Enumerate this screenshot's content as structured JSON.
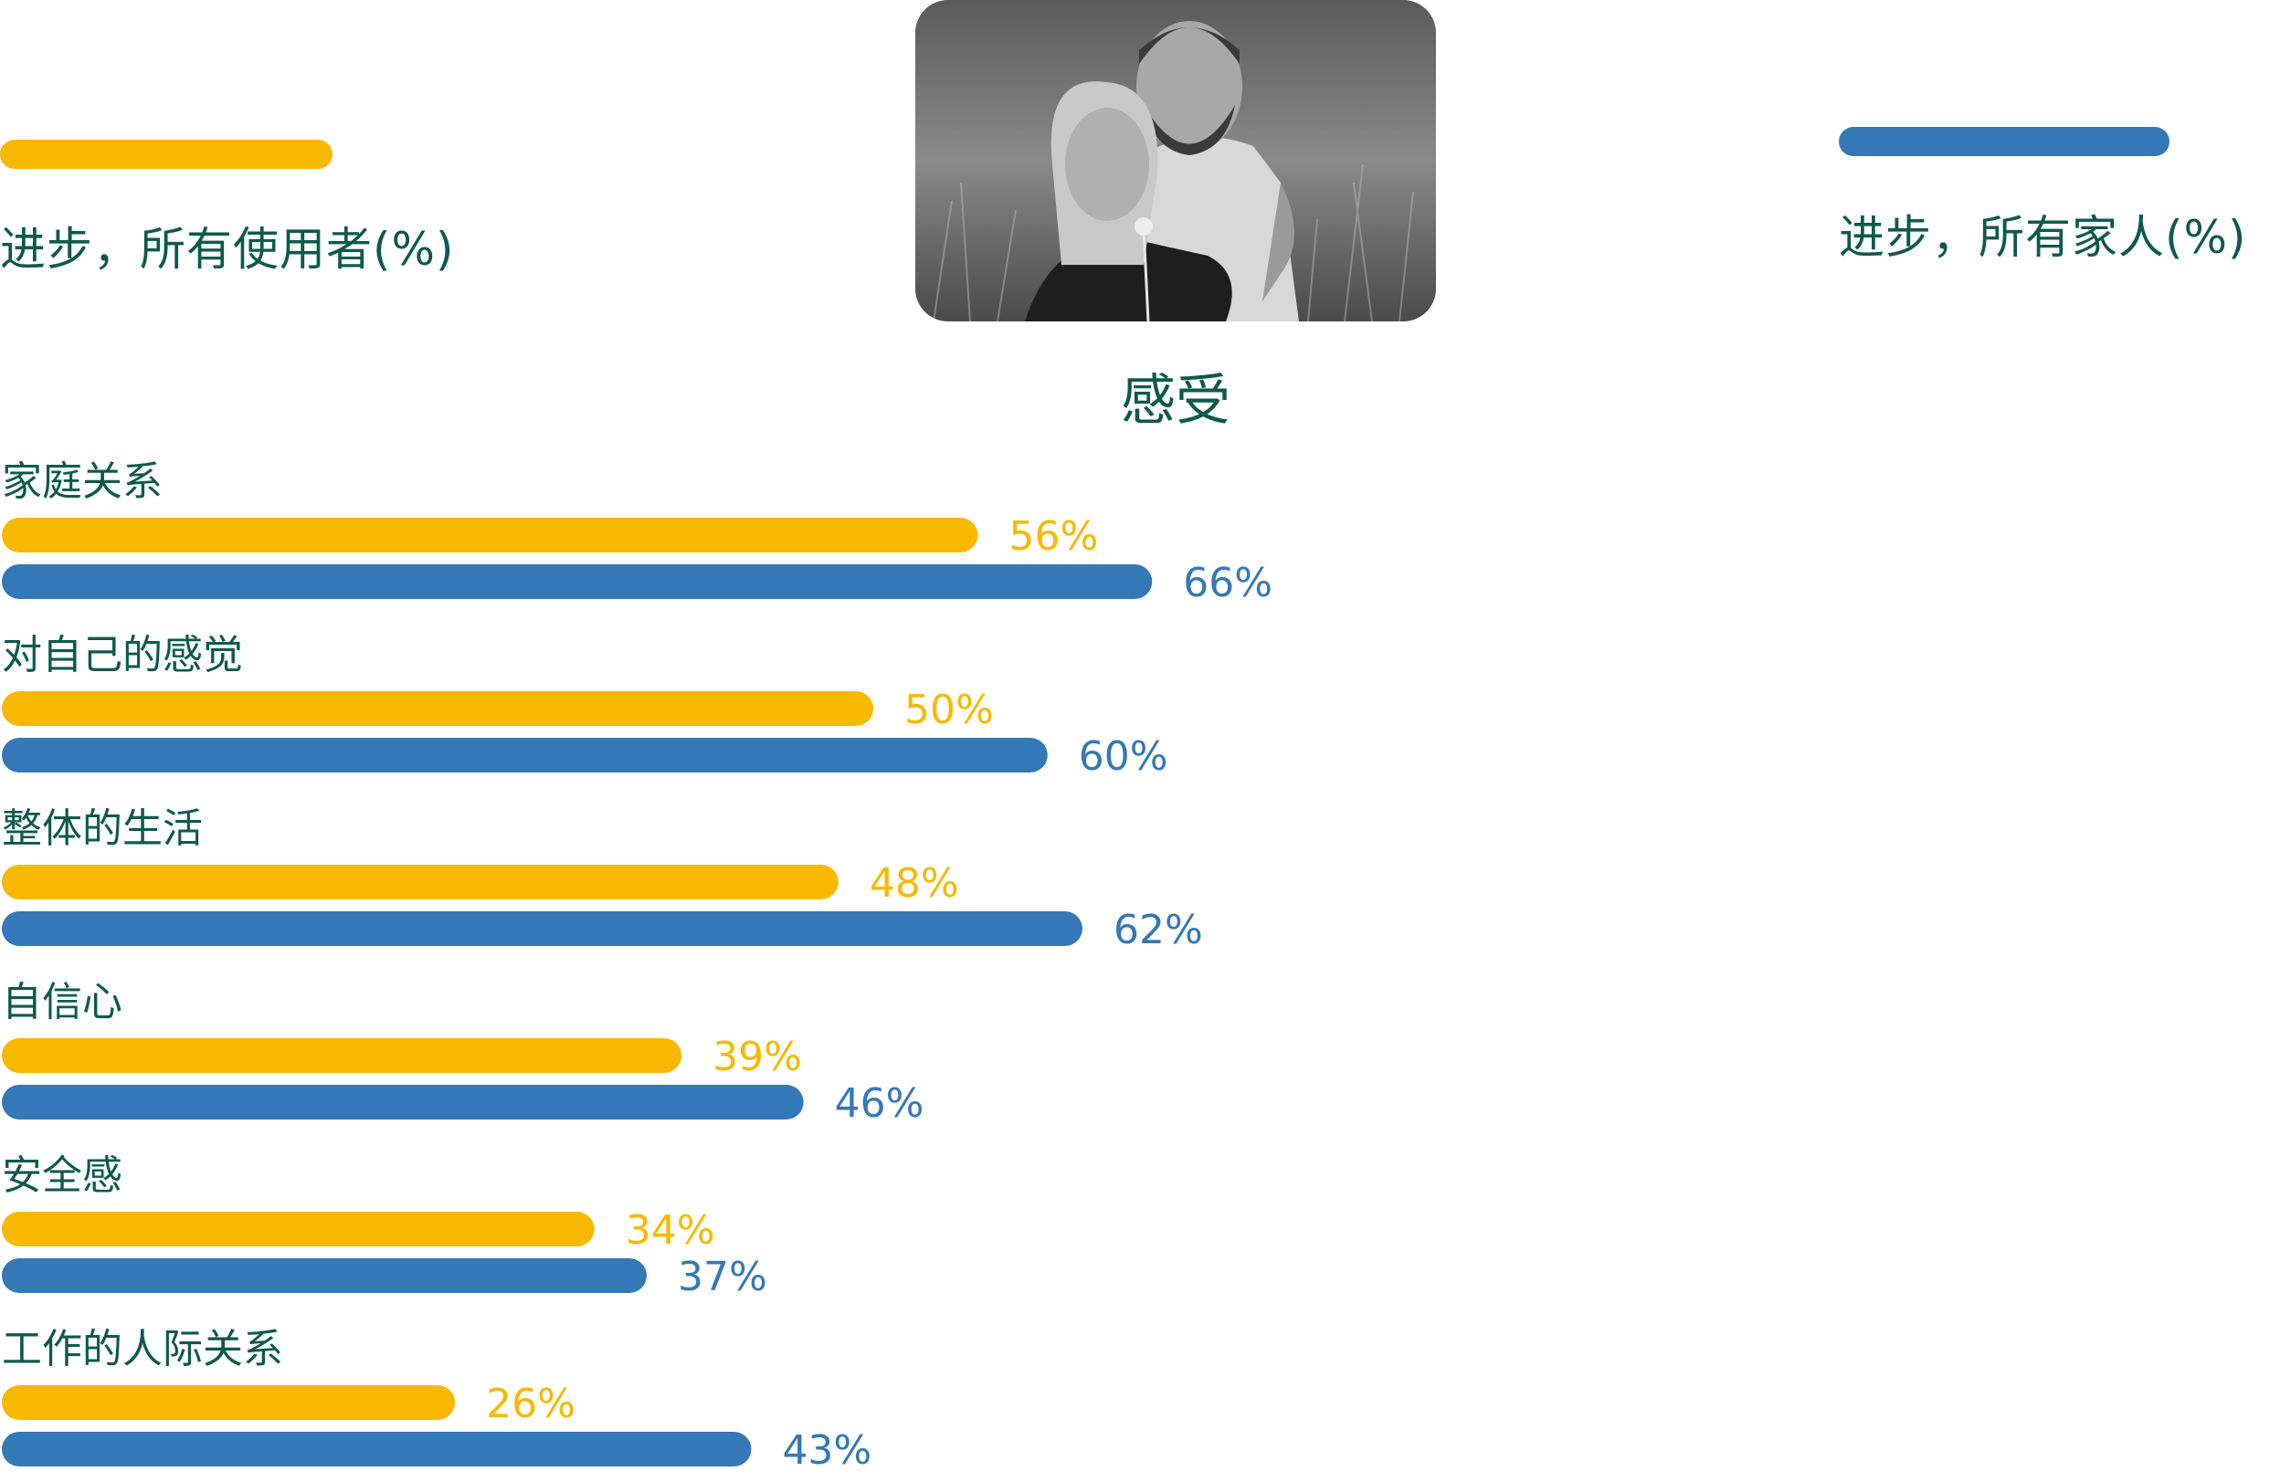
{
  "colors": {
    "users": "#F9B800",
    "family": "#3478B7",
    "text": "#0D5A4A"
  },
  "legend": {
    "users_label": "进步，所有使用者(%)",
    "family_label": "进步，所有家人(%)"
  },
  "photo": {
    "icon": "couple-photo-icon"
  },
  "chart_data": {
    "type": "bar",
    "orientation": "horizontal",
    "title": "感受",
    "categories": [
      "家庭关系",
      "对自己的感觉",
      "整体的生活",
      "自信心",
      "安全感",
      "工作的人际关系"
    ],
    "series": [
      {
        "name": "进步，所有使用者(%)",
        "values": [
          56,
          50,
          48,
          39,
          34,
          26
        ],
        "labels": [
          "56%",
          "50%",
          "48%",
          "39%",
          "34%",
          "26%"
        ]
      },
      {
        "name": "进步，所有家人(%)",
        "values": [
          66,
          60,
          62,
          46,
          37,
          43
        ],
        "labels": [
          "66%",
          "60%",
          "62%",
          "46%",
          "37%",
          "43%"
        ]
      }
    ],
    "xlim": [
      0,
      100
    ],
    "grid": false,
    "legend": "top"
  }
}
